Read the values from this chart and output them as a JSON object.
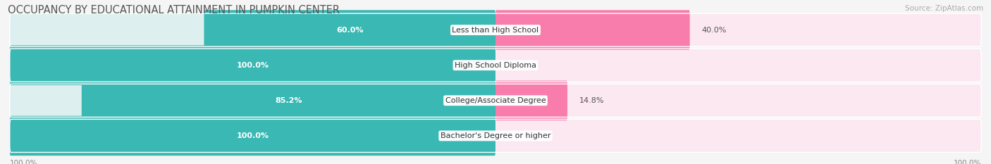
{
  "title": "OCCUPANCY BY EDUCATIONAL ATTAINMENT IN PUMPKIN CENTER",
  "source": "Source: ZipAtlas.com",
  "categories": [
    "Less than High School",
    "High School Diploma",
    "College/Associate Degree",
    "Bachelor's Degree or higher"
  ],
  "owner_values": [
    60.0,
    100.0,
    85.2,
    100.0
  ],
  "renter_values": [
    40.0,
    0.0,
    14.8,
    0.0
  ],
  "owner_color": "#3ab8b3",
  "renter_color": "#f87cac",
  "owner_color_light": "#ddf0ef",
  "renter_color_light": "#fce8f1",
  "row_bg": "#ebebeb",
  "background_color": "#f5f5f5",
  "title_fontsize": 10.5,
  "label_fontsize": 8.0,
  "tick_fontsize": 7.5,
  "legend_fontsize": 8.0,
  "source_fontsize": 7.5,
  "figsize": [
    14.06,
    2.33
  ]
}
